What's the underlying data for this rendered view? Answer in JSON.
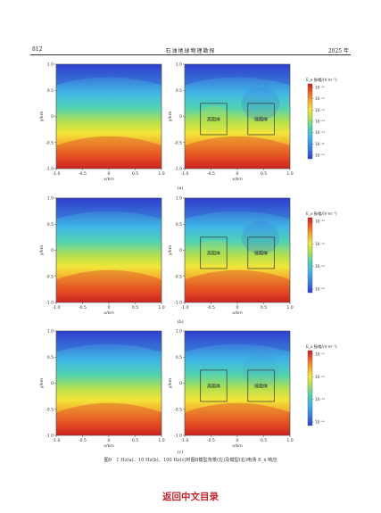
{
  "header": {
    "page_number": "812",
    "journal": "石油地球物理勘探",
    "year": "2025 年"
  },
  "panel_labels": [
    "(a)",
    "(b)",
    "(c)"
  ],
  "model_labels": {
    "high_resistivity": "高阻体",
    "low_resistivity": "低阻体"
  },
  "caption": "图9　1 Hz(a)、10 Hz(b)、100 Hz(c)时图8模型背景(左)及模型(右)电场 E_x 响应",
  "back_link": "返回中文目录",
  "colors": {
    "low": "#2b3cd6",
    "high": "#c81f22",
    "text_link": "#c0272d"
  },
  "chart_data": [
    {
      "type": "heatmap",
      "panel": "(a)",
      "xlabel": "x/km",
      "ylabel": "y/km",
      "xlim": [
        -1.0,
        1.0
      ],
      "ylim": [
        -1.0,
        1.0
      ],
      "x_ticks": [
        "-1.0",
        "-0.5",
        "0",
        "0.5",
        "1.0"
      ],
      "y_ticks": [
        "1.0",
        "0.5",
        "0",
        "-0.5",
        "-1.0"
      ],
      "colorbar_title": "E_x 振幅/(V·m⁻¹)",
      "colorbar_ticks": [
        "10⁻¹⁰",
        "10⁻¹¹",
        "10⁻¹²",
        "10⁻¹³",
        "10⁻¹⁴",
        "10⁻¹⁵",
        "10⁻¹⁶"
      ],
      "anomalies": [
        {
          "label": "高阻体",
          "x": [
            -0.7,
            -0.2
          ],
          "y": [
            -0.35,
            0.25
          ]
        },
        {
          "label": "低阻体",
          "x": [
            0.2,
            0.7
          ],
          "y": [
            -0.35,
            0.25
          ]
        }
      ]
    },
    {
      "type": "heatmap",
      "panel": "(b)",
      "xlabel": "x/km",
      "ylabel": "y/km",
      "xlim": [
        -1.0,
        1.0
      ],
      "ylim": [
        -1.0,
        1.0
      ],
      "x_ticks": [
        "-1.0",
        "-0.5",
        "0",
        "0.5",
        "1.0"
      ],
      "y_ticks": [
        "1.0",
        "0.5",
        "0",
        "-0.5",
        "-1.0"
      ],
      "colorbar_title": "E_x 振幅/(V·m⁻¹)",
      "colorbar_ticks": [
        "10⁻¹⁰",
        "10⁻¹²",
        "10⁻¹⁴",
        "10⁻¹⁶"
      ],
      "anomalies": [
        {
          "label": "高阻体",
          "x": [
            -0.7,
            -0.2
          ],
          "y": [
            -0.35,
            0.25
          ]
        },
        {
          "label": "低阻体",
          "x": [
            0.2,
            0.7
          ],
          "y": [
            -0.35,
            0.25
          ]
        }
      ]
    },
    {
      "type": "heatmap",
      "panel": "(c)",
      "xlabel": "x/km",
      "ylabel": "y/km",
      "xlim": [
        -1.0,
        1.0
      ],
      "ylim": [
        -1.0,
        1.0
      ],
      "x_ticks": [
        "-1.0",
        "-0.5",
        "0",
        "0.5",
        "1.0"
      ],
      "y_ticks": [
        "1.0",
        "0.5",
        "0",
        "-0.5",
        "-1.0"
      ],
      "colorbar_title": "E_x 振幅/(V·m⁻¹)",
      "colorbar_ticks": [
        "10⁻¹⁰",
        "10⁻¹²",
        "10⁻¹⁴",
        "10⁻¹⁶"
      ],
      "anomalies": [
        {
          "label": "高阻体",
          "x": [
            -0.7,
            -0.2
          ],
          "y": [
            -0.35,
            0.25
          ]
        },
        {
          "label": "低阻体",
          "x": [
            0.2,
            0.7
          ],
          "y": [
            -0.35,
            0.25
          ]
        }
      ]
    }
  ]
}
